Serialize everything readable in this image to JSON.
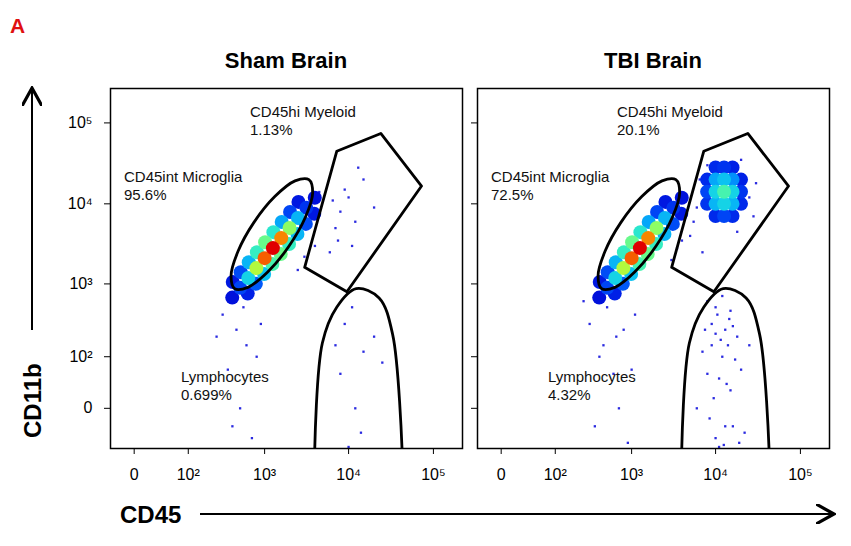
{
  "figure_label": "A",
  "xlabel": "CD45",
  "ylabel": "CD11b",
  "chart_data": [
    {
      "type": "scatter",
      "title": "Sham Brain",
      "log": true,
      "xlim": [
        -27,
        220000
      ],
      "ylim": [
        -64,
        266000
      ],
      "xticks": [
        0,
        {
          "value": 100,
          "label": "10²"
        },
        {
          "value": 1000,
          "label": "10³"
        },
        {
          "value": 10000,
          "label": "10⁴"
        },
        {
          "value": 100000,
          "label": "10⁵"
        }
      ],
      "yticks": [
        0,
        {
          "value": 100,
          "label": "10²"
        },
        {
          "value": 1000,
          "label": "10³"
        },
        {
          "value": 10000,
          "label": "10⁴"
        },
        {
          "value": 100000,
          "label": "10⁵"
        }
      ],
      "density_range": [
        0,
        1
      ],
      "cloud": [
        [
          398,
          668,
          0.04
        ],
        [
          3981,
          11885,
          0.04
        ],
        [
          404,
          1057,
          0.06
        ],
        [
          3926,
          7516,
          0.06
        ],
        [
          2547,
          10568,
          0.06
        ],
        [
          622,
          752,
          0.08
        ],
        [
          3162,
          8913,
          0.12
        ],
        [
          501,
          891,
          0.15
        ],
        [
          2023,
          7925,
          0.15
        ],
        [
          508,
          1409,
          0.16
        ],
        [
          3119,
          5636,
          0.16
        ],
        [
          783,
          1002,
          0.18
        ],
        [
          1607,
          5943,
          0.28
        ],
        [
          2512,
          6683,
          0.3
        ],
        [
          640,
          1879,
          0.3
        ],
        [
          2477,
          4227,
          0.3
        ],
        [
          986,
          1337,
          0.32
        ],
        [
          631,
          1189,
          0.35
        ],
        [
          1276,
          4457,
          0.4
        ],
        [
          1968,
          3170,
          0.42
        ],
        [
          805,
          2506,
          0.42
        ],
        [
          1242,
          1782,
          0.45
        ],
        [
          1563,
          2377,
          0.5
        ],
        [
          1014,
          3342,
          0.5
        ],
        [
          1995,
          5012,
          0.55
        ],
        [
          794,
          1585,
          0.6
        ],
        [
          1585,
          3758,
          0.8
        ],
        [
          1000,
          2113,
          0.85
        ],
        [
          1259,
          2818,
          1.0
        ]
      ],
      "events": [
        [
          300,
          400
        ],
        [
          450,
          250
        ],
        [
          600,
          150
        ],
        [
          350,
          60
        ],
        [
          500,
          0
        ],
        [
          700,
          -40
        ],
        [
          800,
          100
        ],
        [
          400,
          -20
        ],
        [
          550,
          500
        ],
        [
          900,
          300
        ],
        [
          250,
          200
        ],
        [
          650,
          700
        ],
        [
          2500,
          1500
        ],
        [
          3000,
          2200
        ],
        [
          4000,
          3000
        ],
        [
          6000,
          2500
        ],
        [
          7000,
          5000
        ],
        [
          8000,
          8000
        ],
        [
          10000,
          12000
        ],
        [
          12000,
          6000
        ],
        [
          15000,
          20000
        ],
        [
          9000,
          15000
        ],
        [
          20000,
          9000
        ],
        [
          6500,
          11000
        ],
        [
          11000,
          3000
        ],
        [
          7500,
          3500
        ],
        [
          13000,
          28000
        ],
        [
          8000,
          50
        ],
        [
          12000,
          0
        ],
        [
          15000,
          120
        ],
        [
          10000,
          -60
        ],
        [
          20000,
          200
        ],
        [
          9000,
          300
        ],
        [
          14000,
          -30
        ],
        [
          25000,
          80
        ],
        [
          7000,
          150
        ],
        [
          11000,
          500
        ],
        [
          3500,
          9000
        ],
        [
          4500,
          14000
        ],
        [
          2800,
          12000
        ]
      ],
      "gates": [
        {
          "name": "CD45int Microglia",
          "value": 95.6,
          "value_label": "95.6%",
          "polygon": [
            [
              3388,
              19953
            ],
            [
              3758,
              13614
            ],
            [
              3069,
              6761
            ],
            [
              1950,
              2951
            ],
            [
              1089,
              1413
            ],
            [
              624,
              904
            ],
            [
              427,
              871
            ],
            [
              385,
              1276
            ],
            [
              471,
              2570
            ],
            [
              741,
              5888
            ],
            [
              1327,
              12303
            ],
            [
              2317,
              19231
            ]
          ]
        },
        {
          "name": "CD45hi Myeloid",
          "value": 1.13,
          "value_label": "1.13%",
          "polygon": [
            [
              3020,
              1622
            ],
            [
              7244,
              44668
            ],
            [
              23988,
              74131
            ],
            [
              72444,
              16596
            ],
            [
              9550,
              794
            ]
          ]
        },
        {
          "name": "Lymphocytes",
          "value": 0.699,
          "value_label": "0.699%",
          "polygon": [
            [
              3981,
              -64
            ],
            [
              4898,
              162
            ],
            [
              7244,
              501
            ],
            [
              12303,
              871
            ],
            [
              22909,
              661
            ],
            [
              33113,
              214
            ],
            [
              42658,
              -64
            ]
          ]
        }
      ]
    },
    {
      "type": "scatter",
      "title": "TBI Brain",
      "log": true,
      "tick_labels": "x",
      "xlim": [
        -27,
        220000
      ],
      "ylim": [
        -64,
        266000
      ],
      "xticks": [
        0,
        {
          "value": 100,
          "label": "10²"
        },
        {
          "value": 1000,
          "label": "10³"
        },
        {
          "value": 10000,
          "label": "10⁴"
        },
        {
          "value": 100000,
          "label": "10⁵"
        }
      ],
      "yticks": [
        0,
        {
          "value": 100,
          "label": "10²"
        },
        {
          "value": 1000,
          "label": "10³"
        },
        {
          "value": 10000,
          "label": "10⁴"
        },
        {
          "value": 100000,
          "label": "10⁵"
        }
      ],
      "density_range": [
        0,
        1
      ],
      "cloud": [
        [
          19953,
          19953,
          0.08
        ],
        [
          15849,
          28184,
          0.08
        ],
        [
          10000,
          7079,
          0.1
        ],
        [
          15849,
          7079,
          0.1
        ],
        [
          19953,
          10000,
          0.1
        ],
        [
          7943,
          19953,
          0.1
        ],
        [
          10000,
          28184,
          0.1
        ],
        [
          7943,
          10000,
          0.12
        ],
        [
          19953,
          14125,
          0.12
        ],
        [
          12589,
          28184,
          0.12
        ],
        [
          12589,
          7079,
          0.15
        ],
        [
          7943,
          14125,
          0.15
        ],
        [
          15849,
          19953,
          0.25
        ],
        [
          10000,
          19953,
          0.28
        ],
        [
          10000,
          10000,
          0.3
        ],
        [
          15849,
          10000,
          0.3
        ],
        [
          12589,
          19953,
          0.32
        ],
        [
          12589,
          10000,
          0.35
        ],
        [
          10000,
          14125,
          0.35
        ],
        [
          15849,
          14125,
          0.35
        ],
        [
          12589,
          14125,
          0.45
        ],
        [
          398,
          668,
          0.04
        ],
        [
          3981,
          11885,
          0.04
        ],
        [
          404,
          1057,
          0.06
        ],
        [
          3926,
          7516,
          0.06
        ],
        [
          2547,
          10568,
          0.06
        ],
        [
          622,
          752,
          0.08
        ],
        [
          3162,
          8913,
          0.12
        ],
        [
          501,
          891,
          0.15
        ],
        [
          2023,
          7925,
          0.15
        ],
        [
          508,
          1409,
          0.16
        ],
        [
          3119,
          5636,
          0.16
        ],
        [
          783,
          1002,
          0.18
        ],
        [
          1607,
          5943,
          0.28
        ],
        [
          2512,
          6683,
          0.3
        ],
        [
          640,
          1879,
          0.3
        ],
        [
          2477,
          4227,
          0.3
        ],
        [
          986,
          1337,
          0.32
        ],
        [
          631,
          1189,
          0.35
        ],
        [
          1276,
          4457,
          0.4
        ],
        [
          1968,
          3170,
          0.42
        ],
        [
          805,
          2506,
          0.42
        ],
        [
          1242,
          1782,
          0.45
        ],
        [
          1563,
          2377,
          0.5
        ],
        [
          1014,
          3342,
          0.5
        ],
        [
          1995,
          5012,
          0.55
        ],
        [
          794,
          1585,
          0.6
        ],
        [
          1585,
          3758,
          0.8
        ],
        [
          1000,
          2113,
          0.85
        ],
        [
          1259,
          2818,
          1.0
        ]
      ],
      "events": [
        [
          300,
          300
        ],
        [
          450,
          150
        ],
        [
          600,
          50
        ],
        [
          350,
          -20
        ],
        [
          500,
          500
        ],
        [
          700,
          0
        ],
        [
          800,
          250
        ],
        [
          400,
          100
        ],
        [
          900,
          -50
        ],
        [
          550,
          800
        ],
        [
          1100,
          400
        ],
        [
          650,
          200
        ],
        [
          250,
          600
        ],
        [
          1000,
          60
        ],
        [
          5000,
          4000
        ],
        [
          6000,
          9000
        ],
        [
          6500,
          20000
        ],
        [
          25000,
          12000
        ],
        [
          30000,
          18000
        ],
        [
          8000,
          30000
        ],
        [
          20000,
          35000
        ],
        [
          5500,
          6000
        ],
        [
          28000,
          7000
        ],
        [
          7000,
          2500
        ],
        [
          18000,
          4500
        ],
        [
          3000,
          2000
        ],
        [
          3500,
          2800
        ],
        [
          4000,
          3500
        ],
        [
          6000,
          0
        ],
        [
          8000,
          50
        ],
        [
          10000,
          -40
        ],
        [
          12000,
          100
        ],
        [
          15000,
          20
        ],
        [
          18000,
          200
        ],
        [
          9000,
          300
        ],
        [
          11000,
          -60
        ],
        [
          14000,
          150
        ],
        [
          16000,
          -20
        ],
        [
          20000,
          60
        ],
        [
          7000,
          120
        ],
        [
          13000,
          250
        ],
        [
          10500,
          400
        ],
        [
          9500,
          10
        ],
        [
          12500,
          -55
        ],
        [
          17000,
          90
        ],
        [
          8500,
          -10
        ],
        [
          11500,
          180
        ],
        [
          22000,
          -30
        ],
        [
          14500,
          350
        ],
        [
          7500,
          250
        ],
        [
          13500,
          30
        ],
        [
          19000,
          -50
        ],
        [
          10000,
          500
        ],
        [
          12000,
          700
        ],
        [
          9000,
          150
        ],
        [
          16000,
          280
        ],
        [
          25000,
          150
        ],
        [
          11000,
          40
        ],
        [
          13000,
          -20
        ],
        [
          15000,
          450
        ],
        [
          8000,
          600
        ],
        [
          10000,
          220
        ],
        [
          3500,
          10000
        ],
        [
          4500,
          13000
        ]
      ],
      "gates": [
        {
          "name": "CD45int Microglia",
          "value": 72.5,
          "value_label": "72.5%",
          "polygon": [
            [
              3388,
              19953
            ],
            [
              3758,
              13614
            ],
            [
              3069,
              6761
            ],
            [
              1950,
              2951
            ],
            [
              1089,
              1413
            ],
            [
              624,
              904
            ],
            [
              427,
              871
            ],
            [
              385,
              1276
            ],
            [
              471,
              2570
            ],
            [
              741,
              5888
            ],
            [
              1327,
              12303
            ],
            [
              2317,
              19231
            ]
          ]
        },
        {
          "name": "CD45hi Myeloid",
          "value": 20.1,
          "value_label": "20.1%",
          "polygon": [
            [
              3020,
              1622
            ],
            [
              7244,
              44668
            ],
            [
              23988,
              74131
            ],
            [
              72444,
              16596
            ],
            [
              9550,
              794
            ]
          ]
        },
        {
          "name": "Lymphocytes",
          "value": 4.32,
          "value_label": "4.32%",
          "polygon": [
            [
              3981,
              -64
            ],
            [
              4898,
              162
            ],
            [
              7244,
              501
            ],
            [
              12303,
              871
            ],
            [
              22909,
              661
            ],
            [
              33113,
              214
            ],
            [
              42658,
              -64
            ]
          ]
        }
      ]
    }
  ]
}
